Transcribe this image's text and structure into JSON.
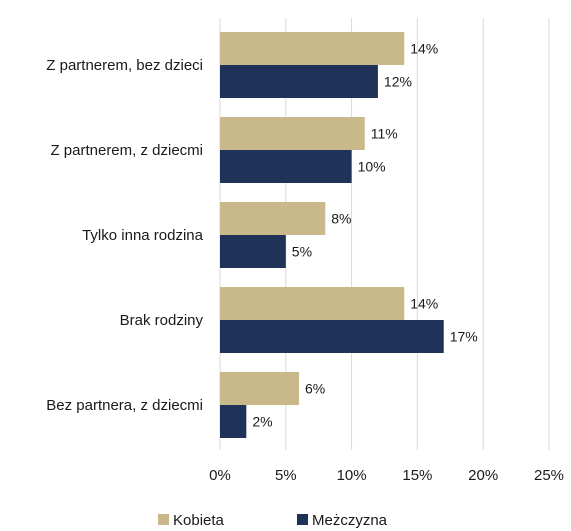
{
  "chart_data": {
    "type": "bar",
    "orientation": "horizontal",
    "categories": [
      "Z partnerem, bez dzieci",
      "Z partnerem, z dziecmi",
      "Tylko inna rodzina",
      "Brak rodziny",
      "Bez partnera, z dziecmi"
    ],
    "series": [
      {
        "name": "Kobieta",
        "values": [
          14,
          11,
          8,
          14,
          6
        ],
        "labels": [
          "14%",
          "11%",
          "8%",
          "14%",
          "6%"
        ],
        "color": "#c9b98a"
      },
      {
        "name": "Meżczyzna",
        "values": [
          12,
          10,
          5,
          17,
          2
        ],
        "labels": [
          "12%",
          "10%",
          "5%",
          "17%",
          "2%"
        ],
        "color": "#1f3258"
      }
    ],
    "xlim": [
      0,
      25
    ],
    "xticks": [
      0,
      5,
      10,
      15,
      20,
      25
    ],
    "xtick_labels": [
      "0%",
      "5%",
      "10%",
      "15%",
      "20%",
      "25%"
    ],
    "grid": true,
    "legend_position": "bottom",
    "title": "",
    "xlabel": "",
    "ylabel": ""
  }
}
